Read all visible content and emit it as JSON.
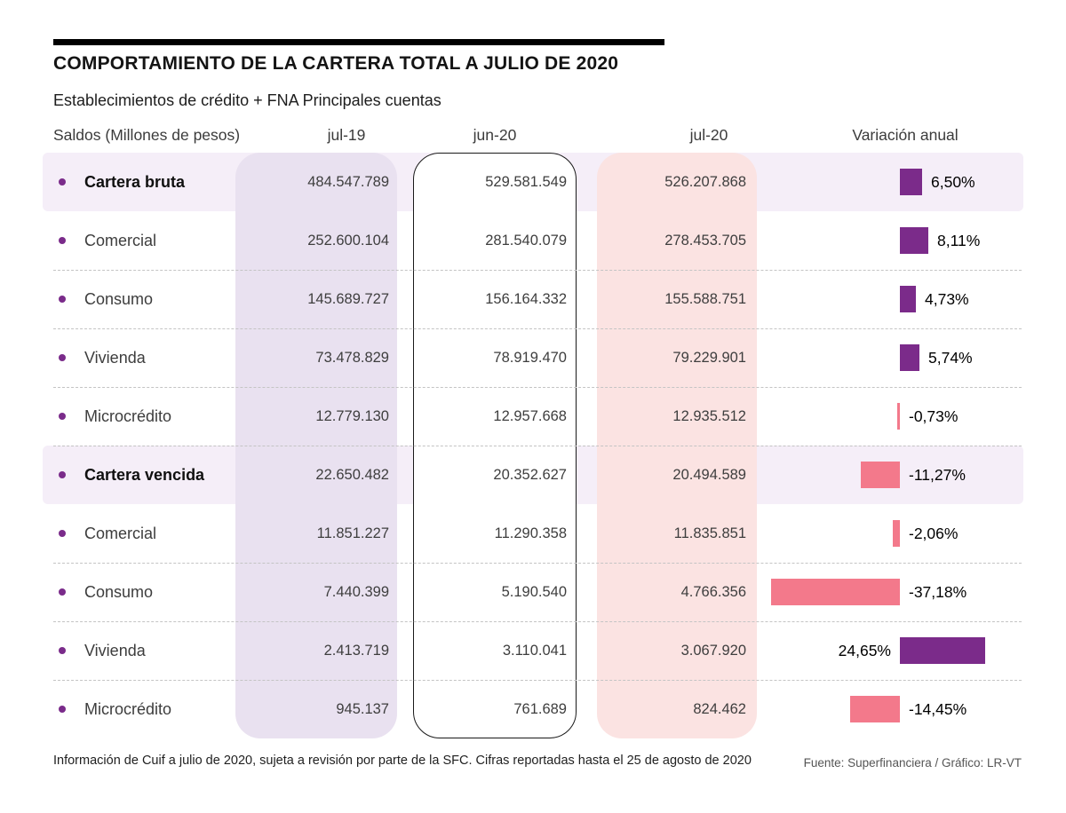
{
  "header": {
    "title": "COMPORTAMIENTO DE LA CARTERA TOTAL A JULIO DE 2020",
    "subtitle": "Establecimientos de crédito + FNA Principales cuentas"
  },
  "columns": {
    "label": "Saldos (Millones de pesos)",
    "jul19": "jul-19",
    "jun20": "jun-20",
    "jul20": "jul-20",
    "variation": "Variación anual"
  },
  "chart_data": {
    "type": "table",
    "title": "COMPORTAMIENTO DE LA CARTERA TOTAL A JULIO DE 2020",
    "subtitle": "Establecimientos de crédito + FNA Principales cuentas",
    "units": "Millones de pesos",
    "columns": [
      "Saldos (Millones de pesos)",
      "jul-19",
      "jun-20",
      "jul-20",
      "Variación anual"
    ],
    "rows": [
      {
        "label": "Cartera bruta",
        "bold": true,
        "jul19": "484.547.789",
        "jun20": "529.581.549",
        "jul20": "526.207.868",
        "variation_label": "6,50%",
        "variation_value": 6.5
      },
      {
        "label": "Comercial",
        "bold": false,
        "jul19": "252.600.104",
        "jun20": "281.540.079",
        "jul20": "278.453.705",
        "variation_label": "8,11%",
        "variation_value": 8.11
      },
      {
        "label": "Consumo",
        "bold": false,
        "jul19": "145.689.727",
        "jun20": "156.164.332",
        "jul20": "155.588.751",
        "variation_label": "4,73%",
        "variation_value": 4.73
      },
      {
        "label": "Vivienda",
        "bold": false,
        "jul19": "73.478.829",
        "jun20": "78.919.470",
        "jul20": "79.229.901",
        "variation_label": "5,74%",
        "variation_value": 5.74
      },
      {
        "label": "Microcrédito",
        "bold": false,
        "jul19": "12.779.130",
        "jun20": "12.957.668",
        "jul20": "12.935.512",
        "variation_label": "-0,73%",
        "variation_value": -0.73
      },
      {
        "label": "Cartera vencida",
        "bold": true,
        "jul19": "22.650.482",
        "jun20": "20.352.627",
        "jul20": "20.494.589",
        "variation_label": "-11,27%",
        "variation_value": -11.27
      },
      {
        "label": "Comercial",
        "bold": false,
        "jul19": "11.851.227",
        "jun20": "11.290.358",
        "jul20": "11.835.851",
        "variation_label": "-2,06%",
        "variation_value": -2.06
      },
      {
        "label": "Consumo",
        "bold": false,
        "jul19": "7.440.399",
        "jun20": "5.190.540",
        "jul20": "4.766.356",
        "variation_label": "-37,18%",
        "variation_value": -37.18
      },
      {
        "label": "Vivienda",
        "bold": false,
        "jul19": "2.413.719",
        "jun20": "3.110.041",
        "jul20": "3.067.920",
        "variation_label": "24,65%",
        "variation_value": 24.65,
        "label_side": "left"
      },
      {
        "label": "Microcrédito",
        "bold": false,
        "jul19": "945.137",
        "jun20": "761.689",
        "jul20": "824.462",
        "variation_label": "-14,45%",
        "variation_value": -14.45
      }
    ]
  },
  "footer": {
    "note": "Información de Cuif a julio de 2020, sujeta a revisión por parte de la SFC. Cifras reportadas hasta el 25 de agosto de 2020",
    "source": "Fuente: Superfinanciera / Gráfico: LR-VT"
  },
  "colors": {
    "positive_bar": "#7b2b8a",
    "negative_bar": "#f3798b",
    "jul19_column_bg": "#e9e1f0",
    "jul20_column_bg": "#fbe3e2",
    "highlight_row_bg": "#f5eef8",
    "bullet": "#7a2b8a"
  }
}
